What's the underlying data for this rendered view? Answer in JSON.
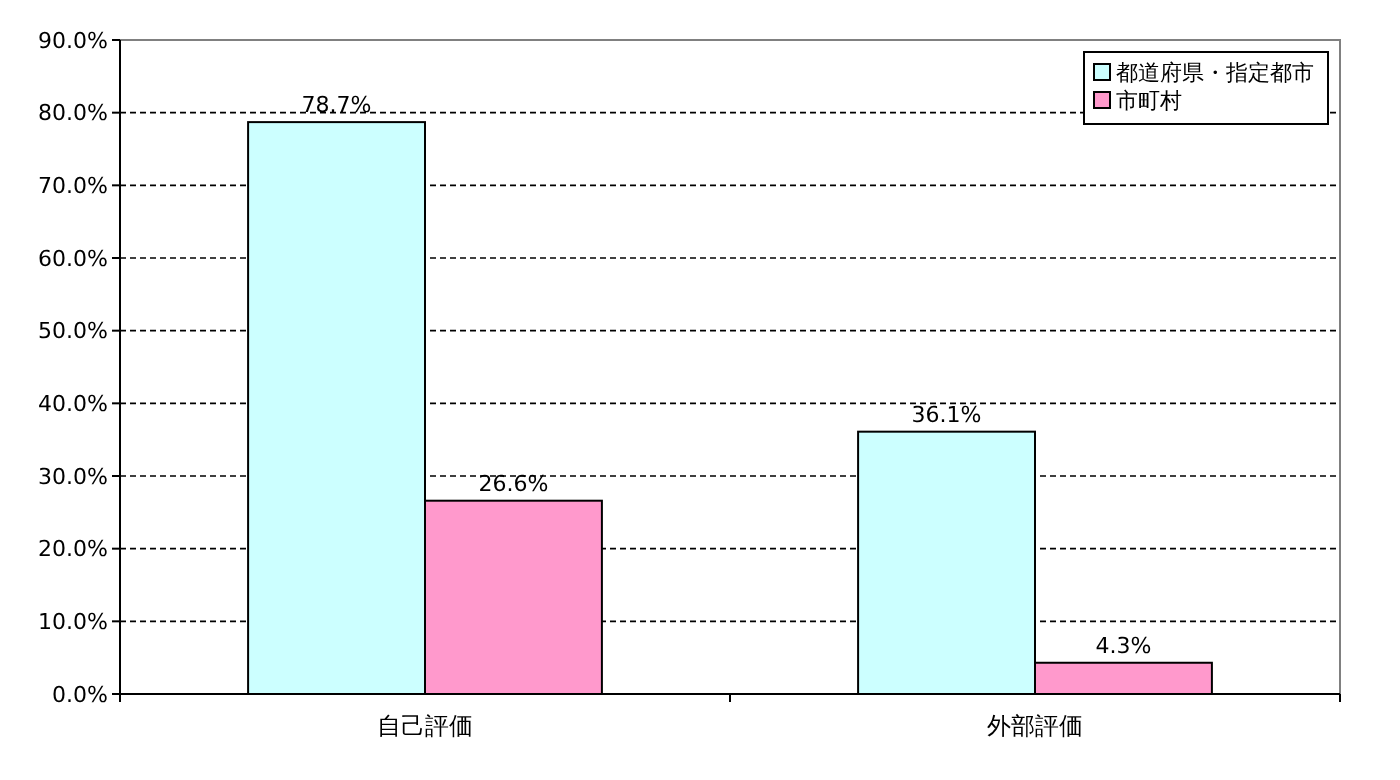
{
  "chart_data": {
    "type": "bar",
    "categories": [
      "自己評価",
      "外部評価"
    ],
    "series": [
      {
        "name": "都道府県・指定都市",
        "color": "#ccffff",
        "values": [
          78.7,
          36.1
        ],
        "value_labels": [
          "78.7%",
          "36.1%"
        ]
      },
      {
        "name": "市町村",
        "color": "#ff99cc",
        "values": [
          26.6,
          4.3
        ],
        "value_labels": [
          "26.6%",
          "4.3%"
        ]
      }
    ],
    "ylim": [
      0,
      90
    ],
    "yticks": [
      {
        "value": 0,
        "label": "0.0%"
      },
      {
        "value": 10,
        "label": "10.0%"
      },
      {
        "value": 20,
        "label": "20.0%"
      },
      {
        "value": 30,
        "label": "30.0%"
      },
      {
        "value": 40,
        "label": "40.0%"
      },
      {
        "value": 50,
        "label": "50.0%"
      },
      {
        "value": 60,
        "label": "60.0%"
      },
      {
        "value": 70,
        "label": "70.0%"
      },
      {
        "value": 80,
        "label": "80.0%"
      },
      {
        "value": 90,
        "label": "90.0%"
      }
    ],
    "grid": "y",
    "legend": "top right"
  }
}
